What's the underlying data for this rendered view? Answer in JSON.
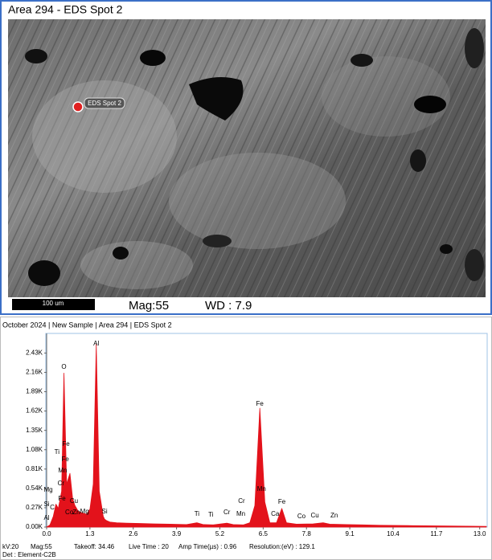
{
  "sem": {
    "title": "Area 294 - EDS Spot 2",
    "spot_label": "EDS Spot 2",
    "scale_bar": "100 um",
    "mag": "Mag:55",
    "wd": "WD : 7.9"
  },
  "chart_data": {
    "type": "area",
    "title": "October 2024 | New Sample | Area 294 | EDS Spot 2",
    "x": [
      0.0,
      0.1,
      0.2,
      0.28,
      0.35,
      0.45,
      0.52,
      0.6,
      0.7,
      0.78,
      0.85,
      0.95,
      1.05,
      1.2,
      1.3,
      1.4,
      1.49,
      1.58,
      1.7,
      1.74,
      1.8,
      1.9,
      2.1,
      2.4,
      2.8,
      3.2,
      3.7,
      4.2,
      4.51,
      4.7,
      5.0,
      5.41,
      5.6,
      5.9,
      6.1,
      6.25,
      6.4,
      6.55,
      6.7,
      6.9,
      7.06,
      7.2,
      7.5,
      8.0,
      8.3,
      8.5,
      9.0,
      9.5,
      10.0,
      11.0,
      12.0,
      13.2
    ],
    "series": [
      {
        "color": "#e3121b",
        "values": [
          0,
          30,
          150,
          320,
          260,
          500,
          2150,
          600,
          750,
          400,
          300,
          220,
          200,
          180,
          250,
          600,
          2550,
          500,
          150,
          110,
          90,
          70,
          60,
          55,
          50,
          45,
          40,
          35,
          60,
          35,
          30,
          55,
          35,
          30,
          60,
          300,
          1660,
          350,
          60,
          60,
          260,
          60,
          40,
          45,
          60,
          40,
          35,
          30,
          25,
          20,
          15,
          10
        ]
      }
    ],
    "xlim": [
      0,
      13.2
    ],
    "xticks": [
      {
        "value": 0,
        "label": "0.0"
      },
      1.3,
      2.6,
      3.9,
      5.2,
      6.5,
      7.8,
      9.1,
      10.4,
      11.7,
      {
        "value": 13,
        "label": "13.0"
      }
    ],
    "ylim": [
      0,
      2670
    ],
    "yticks": [
      {
        "value": 0,
        "label": "0.00K"
      },
      {
        "value": 270,
        "label": "0.27K"
      },
      {
        "value": 540,
        "label": "0.54K"
      },
      {
        "value": 810,
        "label": "0.81K"
      },
      {
        "value": 1080,
        "label": "1.08K"
      },
      {
        "value": 1350,
        "label": "1.35K"
      },
      {
        "value": 1620,
        "label": "1.62K"
      },
      {
        "value": 1890,
        "label": "1.89K"
      },
      {
        "value": 2160,
        "label": "2.16K"
      },
      {
        "value": 2430,
        "label": "2.43K"
      }
    ],
    "annotations": [
      {
        "text": "O",
        "x": 0.52,
        "y": 2232
      },
      {
        "text": "Al",
        "x": 1.49,
        "y": 2558
      },
      {
        "text": "Fe",
        "x": 0.58,
        "y": 1155
      },
      {
        "text": "Ti",
        "x": 0.31,
        "y": 1043
      },
      {
        "text": "Fe",
        "x": 0.56,
        "y": 942
      },
      {
        "text": "Mn",
        "x": 0.48,
        "y": 785
      },
      {
        "text": "Cr",
        "x": 0.43,
        "y": 606
      },
      {
        "text": "Mg",
        "x": 0.05,
        "y": 516
      },
      {
        "text": "Fe",
        "x": 0.46,
        "y": 393
      },
      {
        "text": "Si",
        "x": 0.0,
        "y": 314
      },
      {
        "text": "C",
        "x": 0.17,
        "y": 269
      },
      {
        "text": "Cu",
        "x": 0.82,
        "y": 359
      },
      {
        "text": "Co",
        "x": 0.68,
        "y": 202
      },
      {
        "text": "Zn",
        "x": 0.89,
        "y": 202
      },
      {
        "text": "Mg",
        "x": 1.14,
        "y": 213
      },
      {
        "text": "Al",
        "x": 0.0,
        "y": 123
      },
      {
        "text": "Si",
        "x": 1.74,
        "y": 213
      },
      {
        "text": "Ti",
        "x": 4.51,
        "y": 180
      },
      {
        "text": "Ti",
        "x": 4.93,
        "y": 168
      },
      {
        "text": "Cr",
        "x": 5.41,
        "y": 202
      },
      {
        "text": "Mn",
        "x": 5.83,
        "y": 180
      },
      {
        "text": "Cr",
        "x": 5.85,
        "y": 359
      },
      {
        "text": "Fe",
        "x": 6.4,
        "y": 1716
      },
      {
        "text": "Mn",
        "x": 6.45,
        "y": 527
      },
      {
        "text": "Fe",
        "x": 7.06,
        "y": 348
      },
      {
        "text": "Ca",
        "x": 6.86,
        "y": 180
      },
      {
        "text": "Co",
        "x": 7.65,
        "y": 146
      },
      {
        "text": "Cu",
        "x": 8.05,
        "y": 157
      },
      {
        "text": "Zn",
        "x": 8.63,
        "y": 157
      }
    ],
    "parameters": [
      "kV:20",
      "Mag:55",
      "Takeoff: 34.46",
      "Live Time : 20",
      "Amp Time(µs) : 0.96",
      "Resolution:(eV) : 129.1"
    ],
    "detector": "Det : Element-C2B"
  }
}
